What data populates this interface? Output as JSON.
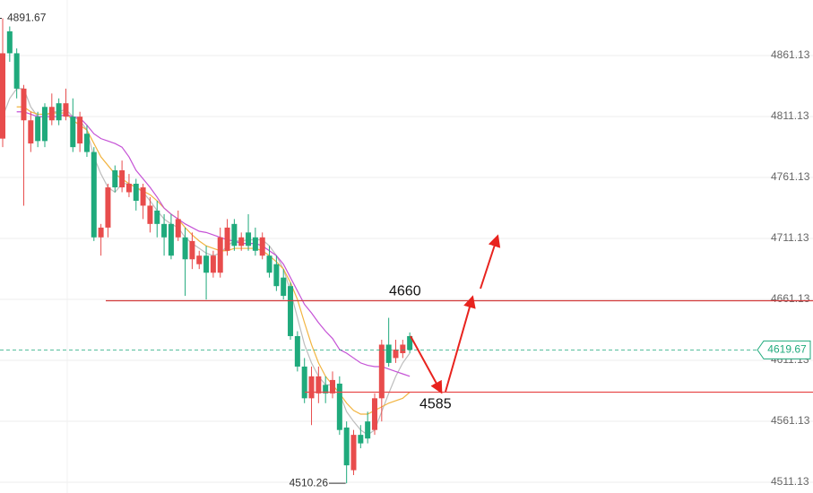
{
  "chart_data": {
    "type": "candlestick",
    "ylim": [
      4502.3,
      4906.7
    ],
    "yticks": [
      4511.13,
      4561.13,
      4611.13,
      4661.13,
      4711.13,
      4761.13,
      4811.13,
      4861.13
    ],
    "grid": true,
    "up_color": "#e84c4c",
    "down_color": "#1faa7c",
    "candles": [
      [
        4793,
        4891.67,
        4786,
        4863
      ],
      [
        4881,
        4885,
        4856,
        4863
      ],
      [
        4863,
        4867,
        4826,
        4834
      ],
      [
        4808,
        4837,
        4738,
        4834
      ],
      [
        4789,
        4815,
        4782,
        4808
      ],
      [
        4811,
        4815,
        4786,
        4791
      ],
      [
        4819,
        4822,
        4786,
        4791
      ],
      [
        4808,
        4830,
        4804,
        4819
      ],
      [
        4822,
        4826,
        4804,
        4808
      ],
      [
        4811,
        4834,
        4808,
        4822
      ],
      [
        4811,
        4826,
        4782,
        4786
      ],
      [
        4789,
        4815,
        4782,
        4811
      ],
      [
        4797,
        4804,
        4778,
        4782
      ],
      [
        4782,
        4786,
        4709,
        4712
      ],
      [
        4712,
        4723,
        4697,
        4720
      ],
      [
        4720,
        4756,
        4712,
        4753
      ],
      [
        4767,
        4771,
        4749,
        4753
      ],
      [
        4753,
        4775,
        4749,
        4767
      ],
      [
        4749,
        4764,
        4745,
        4756
      ],
      [
        4756,
        4760,
        4734,
        4742
      ],
      [
        4738,
        4756,
        4727,
        4753
      ],
      [
        4723,
        4745,
        4716,
        4738
      ],
      [
        4734,
        4742,
        4712,
        4723
      ],
      [
        4723,
        4731,
        4697,
        4712
      ],
      [
        4723,
        4731,
        4694,
        4697
      ],
      [
        4712,
        4734,
        4709,
        4727
      ],
      [
        4712,
        4720,
        4664,
        4694
      ],
      [
        4694,
        4716,
        4686,
        4709
      ],
      [
        4690,
        4701,
        4686,
        4697
      ],
      [
        4697,
        4705,
        4661,
        4683
      ],
      [
        4683,
        4701,
        4679,
        4697
      ],
      [
        4683,
        4720,
        4679,
        4712
      ],
      [
        4701,
        4727,
        4697,
        4720
      ],
      [
        4723,
        4727,
        4701,
        4705
      ],
      [
        4705,
        4716,
        4701,
        4712
      ],
      [
        4716,
        4731,
        4701,
        4705
      ],
      [
        4712,
        4720,
        4697,
        4701
      ],
      [
        4697,
        4716,
        4694,
        4712
      ],
      [
        4697,
        4705,
        4679,
        4683
      ],
      [
        4690,
        4697,
        4668,
        4672
      ],
      [
        4679,
        4686,
        4661,
        4664
      ],
      [
        4672,
        4675,
        4628,
        4631
      ],
      [
        4631,
        4635,
        4602,
        4606
      ],
      [
        4606,
        4613,
        4576,
        4580
      ],
      [
        4580,
        4606,
        4558,
        4598
      ],
      [
        4584,
        4606,
        4576,
        4598
      ],
      [
        4591,
        4598,
        4576,
        4584
      ],
      [
        4584,
        4602,
        4580,
        4595
      ],
      [
        4592,
        4598,
        4550,
        4554
      ],
      [
        4556,
        4561,
        4510.26,
        4525
      ],
      [
        4521,
        4554,
        4517,
        4550
      ],
      [
        4550,
        4558,
        4539,
        4543
      ],
      [
        4561,
        4569,
        4543,
        4547
      ],
      [
        4554,
        4584,
        4550,
        4580
      ],
      [
        4580,
        4628,
        4561,
        4624
      ],
      [
        4624,
        4646,
        4606,
        4609
      ],
      [
        4613,
        4628,
        4609,
        4620
      ],
      [
        4617,
        4628,
        4613,
        4624
      ],
      [
        4631,
        4634,
        4617,
        4619.67
      ]
    ],
    "ma_lines": [
      {
        "color": "#bdbdbd",
        "values": [
          4811,
          4826,
          4834,
          4834,
          4819,
          4811,
          4811,
          4815,
          4815,
          4817,
          4811,
          4808,
          4800,
          4778,
          4764,
          4753,
          4749,
          4756,
          4756,
          4753,
          4749,
          4742,
          4734,
          4727,
          4723,
          4720,
          4712,
          4707,
          4703,
          4699,
          4697,
          4699,
          4705,
          4709,
          4709,
          4710,
          4710,
          4710,
          4705,
          4697,
          4686,
          4668,
          4646,
          4624,
          4609,
          4598,
          4591,
          4591,
          4584,
          4569,
          4561,
          4554,
          4550,
          4554,
          4569,
          4584,
          4598,
          4609,
          4617
        ]
      },
      {
        "color": "#f2b440",
        "values": [
          null,
          null,
          4819,
          4819,
          4815,
          4813,
          4813,
          4814,
          4814,
          4814,
          4808,
          4804,
          4800,
          4789,
          4778,
          4771,
          4764,
          4760,
          4756,
          4753,
          4750,
          4747,
          4742,
          4736,
          4731,
          4727,
          4720,
          4714,
          4709,
          4705,
          4703,
          4701,
          4701,
          4703,
          4703,
          4703,
          4703,
          4701,
          4697,
          4692,
          4686,
          4675,
          4661,
          4642,
          4624,
          4609,
          4598,
          4591,
          4584,
          4576,
          4570,
          4567,
          4567,
          4570,
          4573,
          4576,
          4578,
          4580,
          4585
        ]
      },
      {
        "color": "#c552d6",
        "values": [
          null,
          null,
          4815,
          4815,
          4813,
          4811,
          4811,
          4811,
          4811,
          4813,
          4811,
          4810,
          4804,
          4797,
          4793,
          4791,
          4789,
          4786,
          4778,
          4767,
          4760,
          4753,
          4745,
          4736,
          4731,
          4727,
          4723,
          4720,
          4717,
          4716,
          4714,
          4712,
          4710,
          4709,
          4707,
          4707,
          4707,
          4705,
          4701,
          4697,
          4690,
          4679,
          4668,
          4657,
          4650,
          4642,
          4635,
          4629,
          4620,
          4617,
          4613,
          4609,
          4607,
          4606,
          4606,
          4604,
          4602,
          4600,
          4598
        ]
      }
    ],
    "levels": [
      {
        "value": 4660,
        "label": "4660",
        "color": "#d23b3b"
      },
      {
        "value": 4585,
        "label": "4585",
        "color": "#e84c4c"
      }
    ],
    "last_price": 4619.67
  }
}
